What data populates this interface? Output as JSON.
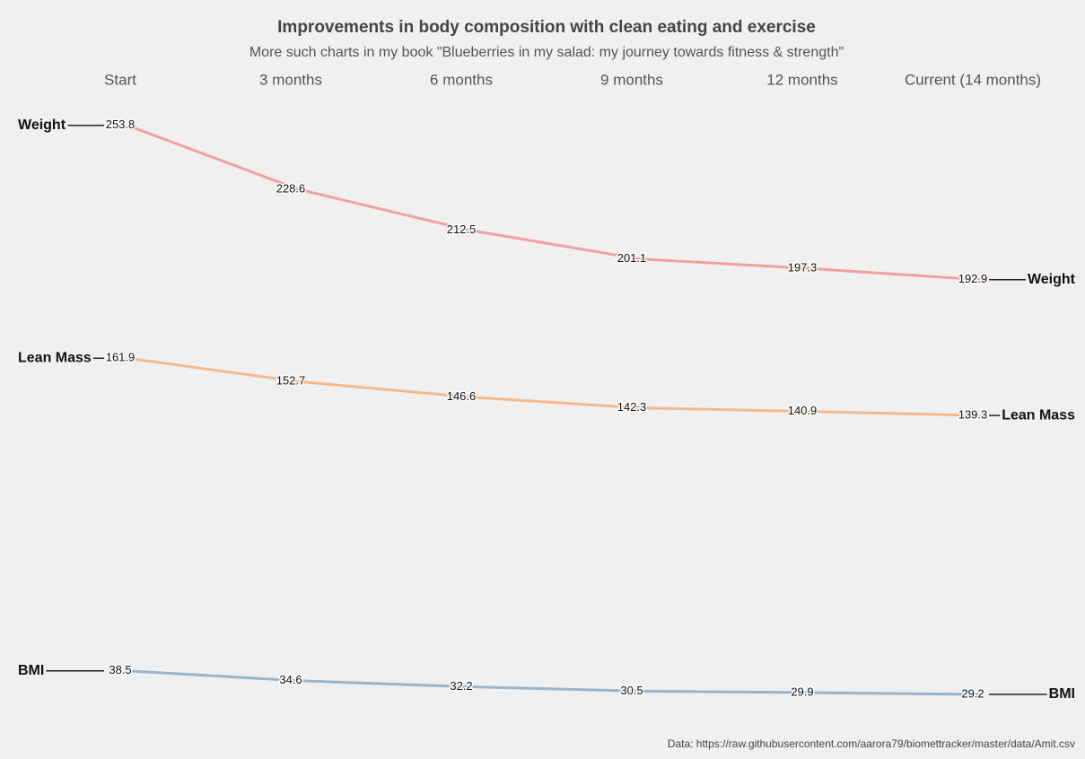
{
  "chart_data": {
    "type": "line",
    "title": "Improvements in body composition with clean eating and exercise",
    "subtitle": "More such charts in my book \"Blueberries in my salad: my journey towards fitness & strength\"",
    "source": "Data: https://raw.githubusercontent.com/aarora79/biomettracker/master/data/Amit.csv",
    "categories": [
      "Start",
      "3 months",
      "6 months",
      "9 months",
      "12 months",
      "Current (14 months)"
    ],
    "series": [
      {
        "name": "Weight",
        "color": "#f0a0a0",
        "values": [
          253.8,
          228.6,
          212.5,
          201.1,
          197.3,
          192.9
        ]
      },
      {
        "name": "Lean Mass",
        "color": "#f6b98a",
        "values": [
          161.9,
          152.7,
          146.6,
          142.3,
          140.9,
          139.3
        ]
      },
      {
        "name": "BMI",
        "color": "#9bb5cb",
        "values": [
          38.5,
          34.6,
          32.2,
          30.5,
          29.9,
          29.2
        ]
      }
    ],
    "ylim": [
      20,
      270
    ]
  }
}
